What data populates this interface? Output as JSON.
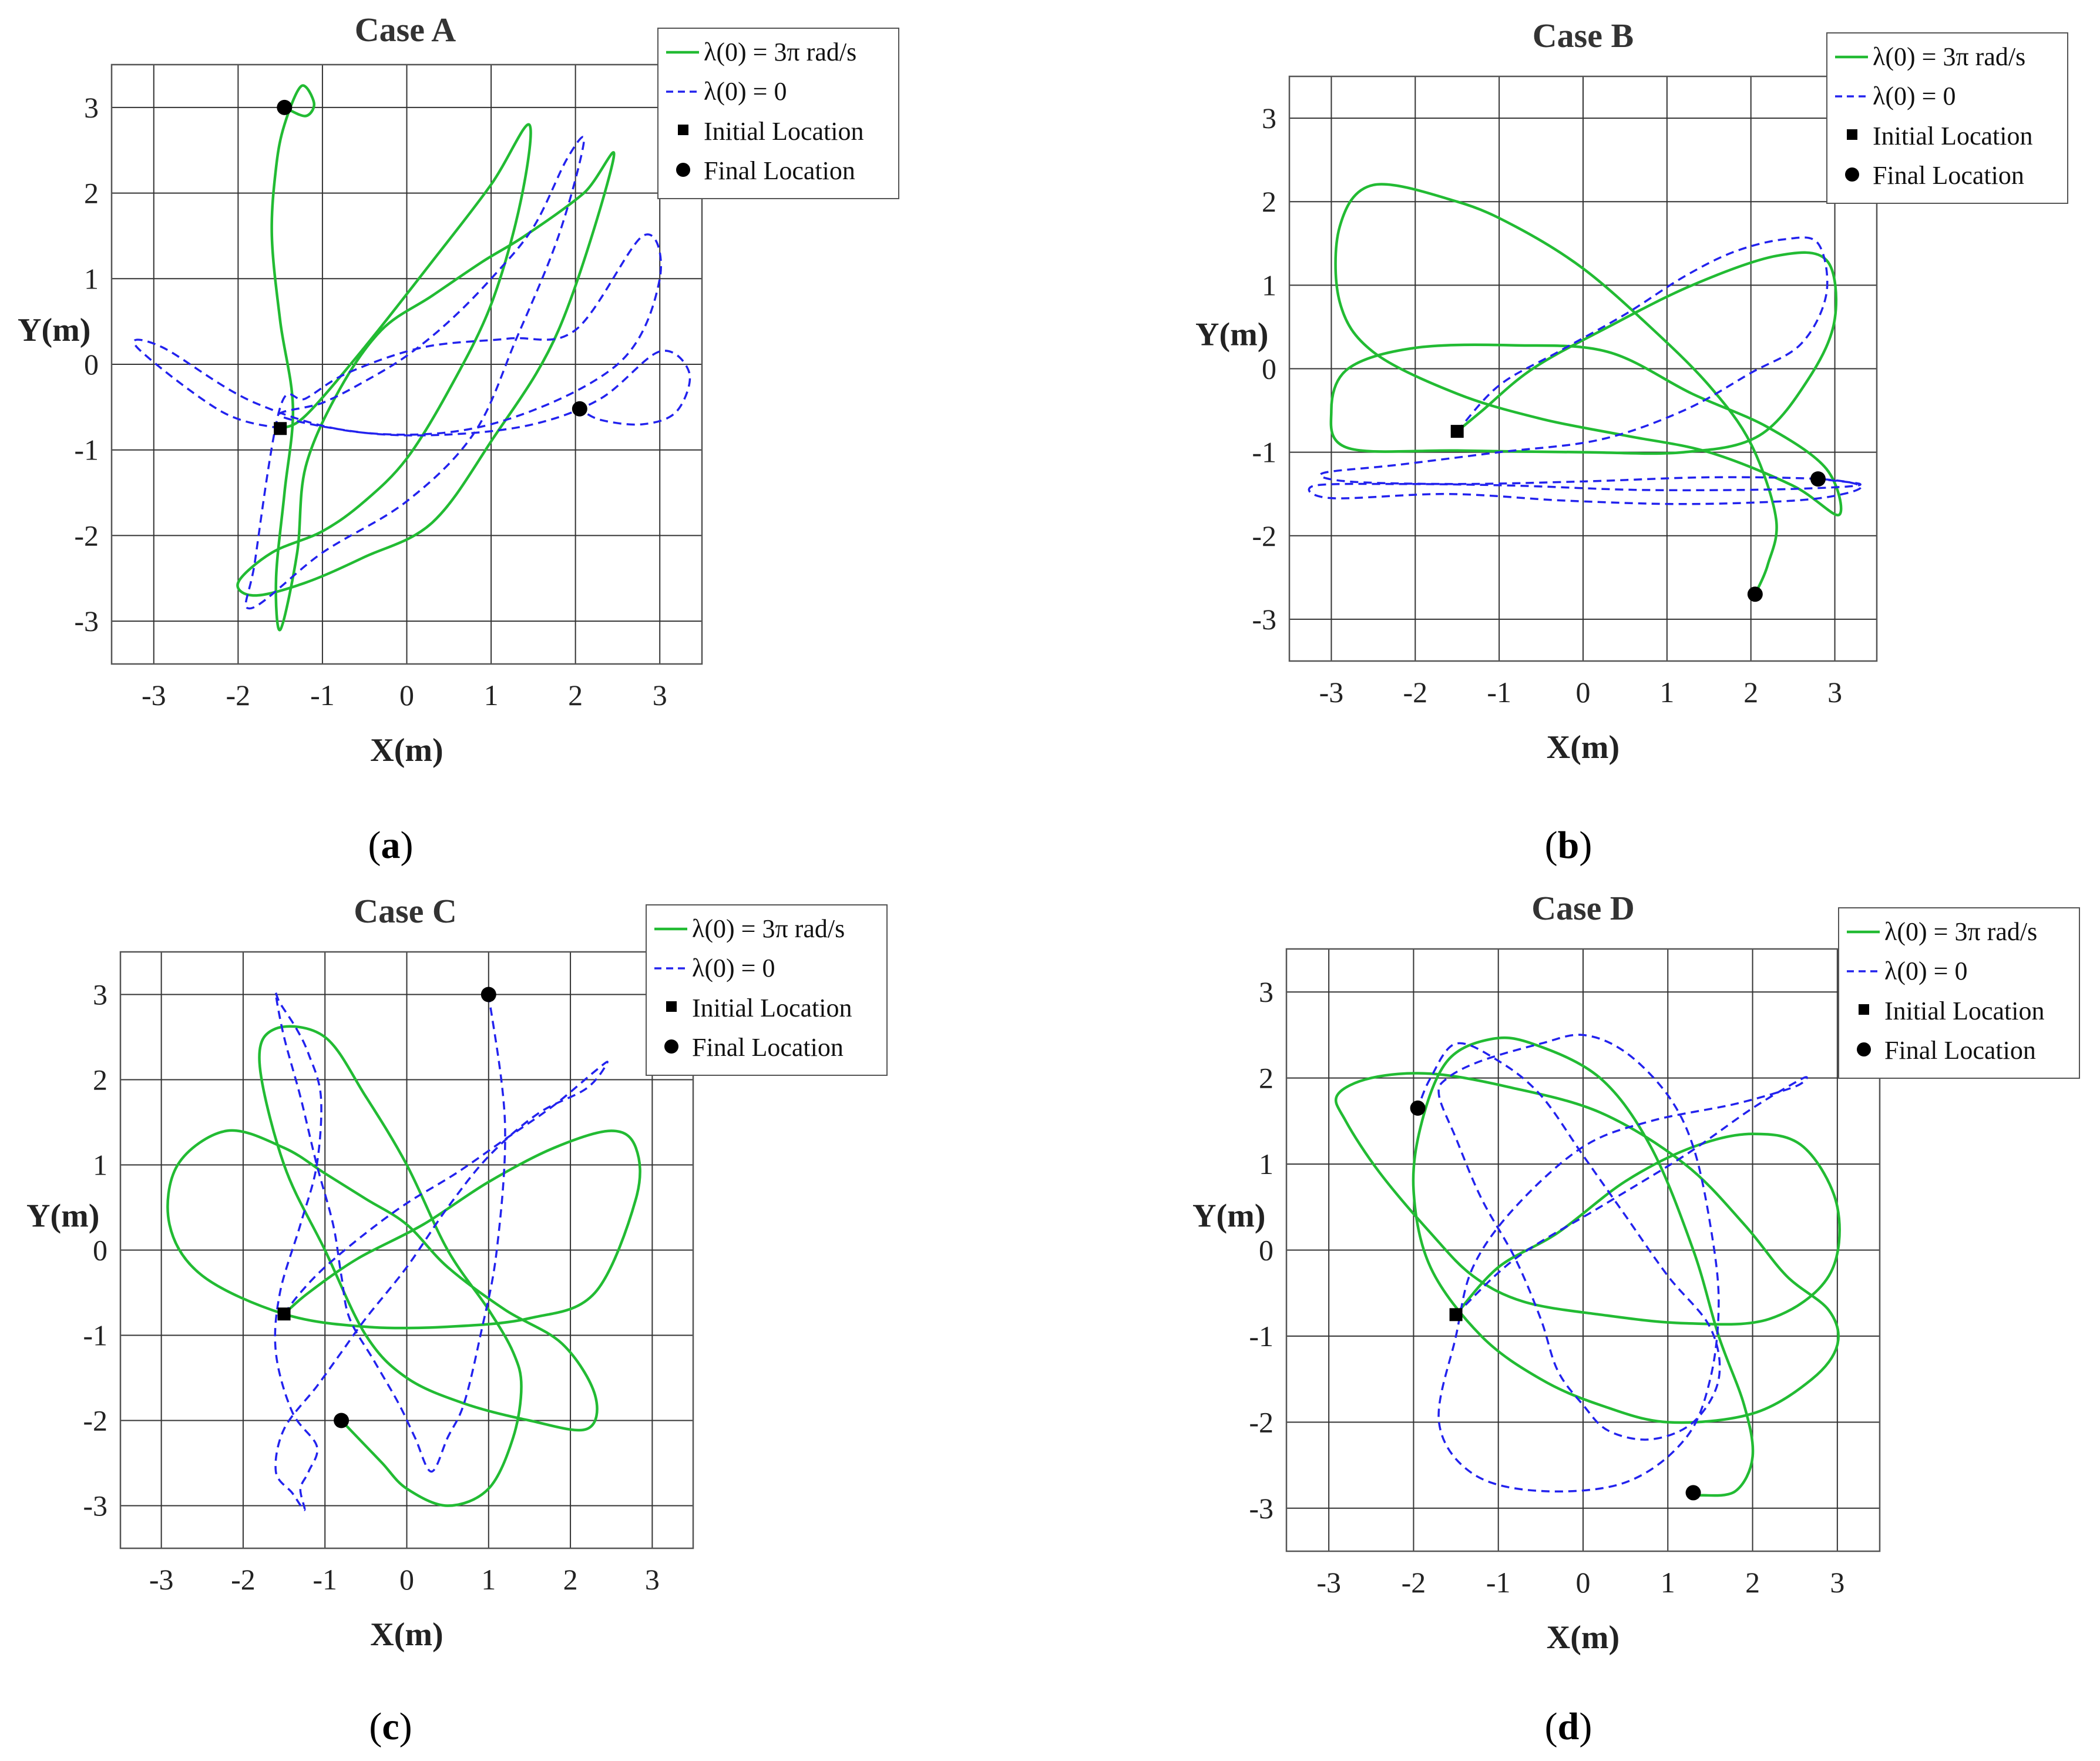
{
  "figure": {
    "legend": {
      "green": "λ(0) = 3π rad/s",
      "blue": "λ(0) = 0",
      "initial": "Initial Location",
      "final": "Final Location"
    },
    "colors": {
      "green": "#22bb33",
      "blue": "#2222ee",
      "marker": "#000000"
    }
  },
  "chart_data": [
    {
      "type": "line",
      "title": "Case A",
      "xlabel": "X(m)",
      "ylabel": "Y(m)",
      "xlim": [
        -3.5,
        3.5
      ],
      "ylim": [
        -3.5,
        3.5
      ],
      "xticks": [
        -3,
        -2,
        -1,
        0,
        1,
        2,
        3
      ],
      "yticks": [
        -3,
        -2,
        -1,
        0,
        1,
        2,
        3
      ],
      "grid": true,
      "caption": "a",
      "legend_position": "top-right",
      "initial": [
        -1.5,
        -0.75
      ],
      "series": [
        {
          "name": "λ(0) = 3π rad/s",
          "style": "solid",
          "final": [
            -1.45,
            3.0
          ],
          "x": [
            -1.5,
            -1.2,
            -0.5,
            0.3,
            1.0,
            1.45,
            1.35,
            1.0,
            0.5,
            0.0,
            -0.5,
            -1.0,
            -1.6,
            -2.0,
            -1.8,
            -1.2,
            -0.5,
            0.3,
            1.0,
            1.8,
            2.45,
            2.1,
            1.4,
            0.9,
            0.3,
            -0.3,
            -0.8,
            -1.2,
            -1.3,
            -1.5,
            -1.55,
            -1.45,
            -1.35,
            -1.5,
            -1.6,
            -1.55,
            -1.45,
            -1.25,
            -1.1,
            -1.2,
            -1.45
          ],
          "y": [
            -0.75,
            -0.6,
            0.2,
            1.2,
            2.1,
            2.8,
            1.9,
            0.7,
            -0.3,
            -1.1,
            -1.6,
            -1.95,
            -2.2,
            -2.55,
            -2.7,
            -2.55,
            -2.25,
            -1.85,
            -0.9,
            0.4,
            2.4,
            2.0,
            1.5,
            1.2,
            0.8,
            0.4,
            -0.3,
            -1.2,
            -2.2,
            -3.1,
            -2.5,
            -1.5,
            -0.5,
            0.5,
            1.5,
            2.3,
            2.8,
            3.25,
            3.05,
            2.9,
            3.0
          ]
        },
        {
          "name": "λ(0) = 0",
          "style": "dashed",
          "final": [
            2.05,
            -0.52
          ],
          "x": [
            -1.5,
            -2.2,
            -3.2,
            -2.9,
            -1.8,
            -0.5,
            1.0,
            2.5,
            3.0,
            2.8,
            2.0,
            1.2,
            0.2,
            -0.7,
            -1.2,
            -1.5,
            -1.8,
            -1.85,
            -1.0,
            0.0,
            0.8,
            1.3,
            1.8,
            2.1,
            1.9,
            1.5,
            1.0,
            0.5,
            0.0,
            -0.5,
            -1.0,
            -1.5,
            -0.5,
            0.5,
            1.5,
            2.3,
            3.0,
            3.35,
            3.2,
            2.8,
            2.3,
            2.05
          ],
          "y": [
            -0.75,
            -0.55,
            0.2,
            0.2,
            -0.45,
            -0.8,
            -0.7,
            0.0,
            1.0,
            1.5,
            0.4,
            0.3,
            0.2,
            -0.1,
            -0.4,
            -0.5,
            -2.3,
            -2.85,
            -2.2,
            -1.6,
            -0.8,
            0.3,
            1.5,
            2.6,
            2.4,
            1.6,
            1.0,
            0.5,
            0.1,
            -0.2,
            -0.45,
            -0.6,
            -0.8,
            -0.82,
            -0.7,
            -0.4,
            0.15,
            -0.1,
            -0.55,
            -0.7,
            -0.65,
            -0.52
          ]
        }
      ]
    },
    {
      "type": "line",
      "title": "Case B",
      "xlabel": "X(m)",
      "ylabel": "Y(m)",
      "xlim": [
        -3.5,
        3.5
      ],
      "ylim": [
        -3.5,
        3.5
      ],
      "xticks": [
        -3,
        -2,
        -1,
        0,
        1,
        2,
        3
      ],
      "yticks": [
        -3,
        -2,
        -1,
        0,
        1,
        2,
        3
      ],
      "grid": true,
      "caption": "b",
      "legend_position": "top-right",
      "initial": [
        -1.5,
        -0.75
      ],
      "series": [
        {
          "name": "λ(0) = 3π rad/s",
          "style": "solid",
          "final": [
            2.05,
            -2.7
          ],
          "x": [
            -1.5,
            -1.2,
            -0.6,
            0.3,
            1.3,
            2.3,
            2.9,
            3.0,
            2.7,
            2.1,
            1.2,
            0.0,
            -1.5,
            -2.8,
            -3.0,
            -2.8,
            -2.0,
            -0.8,
            0.3,
            1.3,
            2.2,
            2.9,
            3.05,
            2.5,
            1.5,
            0.5,
            -0.5,
            -1.5,
            -2.5,
            -2.9,
            -2.9,
            -2.5,
            -1.5,
            -0.8,
            0.0,
            0.8,
            1.5,
            2.0,
            2.3,
            2.2,
            2.05
          ],
          "y": [
            -0.75,
            -0.5,
            0.0,
            0.5,
            1.0,
            1.35,
            1.3,
            0.6,
            -0.1,
            -0.8,
            -1.0,
            -1.0,
            -0.98,
            -0.95,
            -0.5,
            0.0,
            0.25,
            0.28,
            0.2,
            -0.3,
            -0.7,
            -1.2,
            -1.75,
            -1.4,
            -1.0,
            -0.8,
            -0.6,
            -0.3,
            0.2,
            0.8,
            1.7,
            2.2,
            2.0,
            1.7,
            1.2,
            0.5,
            -0.2,
            -0.9,
            -1.8,
            -2.35,
            -2.7
          ]
        },
        {
          "name": "λ(0) = 0",
          "style": "dashed",
          "final": [
            2.8,
            -1.32
          ],
          "x": [
            -1.5,
            -1.0,
            -0.3,
            0.5,
            1.2,
            1.8,
            2.4,
            2.8,
            2.9,
            2.6,
            2.0,
            1.2,
            0.2,
            -1.0,
            -2.2,
            -3.1,
            -2.8,
            -1.5,
            0.0,
            1.5,
            2.8,
            3.3,
            3.1,
            2.5,
            1.2,
            -0.2,
            -1.6,
            -3.0,
            -3.2,
            -2.2,
            -0.8,
            0.6,
            2.0,
            3.0,
            3.3,
            2.8
          ],
          "y": [
            -0.75,
            -0.2,
            0.2,
            0.65,
            1.1,
            1.4,
            1.55,
            1.5,
            0.9,
            0.3,
            -0.05,
            -0.5,
            -0.85,
            -1.0,
            -1.15,
            -1.25,
            -1.35,
            -1.38,
            -1.35,
            -1.3,
            -1.32,
            -1.4,
            -1.5,
            -1.58,
            -1.62,
            -1.58,
            -1.5,
            -1.55,
            -1.4,
            -1.38,
            -1.4,
            -1.45,
            -1.45,
            -1.42,
            -1.38,
            -1.32
          ]
        }
      ]
    },
    {
      "type": "line",
      "title": "Case C",
      "xlabel": "X(m)",
      "ylabel": "Y(m)",
      "xlim": [
        -3.5,
        3.5
      ],
      "ylim": [
        -3.5,
        3.5
      ],
      "xticks": [
        -3,
        -2,
        -1,
        0,
        1,
        2,
        3
      ],
      "yticks": [
        -3,
        -2,
        -1,
        0,
        1,
        2,
        3
      ],
      "grid": true,
      "caption": "c",
      "legend_position": "top-right",
      "initial": [
        -1.5,
        -0.75
      ],
      "series": [
        {
          "name": "λ(0) = 3π rad/s",
          "style": "solid",
          "final": [
            -0.8,
            -2.0
          ],
          "x": [
            -1.5,
            -1.2,
            -0.6,
            0.2,
            1.0,
            1.8,
            2.5,
            2.8,
            2.8,
            2.3,
            1.5,
            0.5,
            -0.5,
            -1.5,
            -2.5,
            -2.9,
            -2.8,
            -2.2,
            -1.5,
            -1.0,
            -0.5,
            0.0,
            0.5,
            1.2,
            1.9,
            2.3,
            2.2,
            1.5,
            0.7,
            0.0,
            -0.5,
            -1.0,
            -1.5,
            -1.8,
            -1.6,
            -1.0,
            -0.5,
            0.0,
            0.5,
            1.0,
            1.3,
            1.4,
            1.3,
            1.0,
            0.5,
            0.0,
            -0.3,
            -0.6,
            -0.8
          ],
          "y": [
            -0.75,
            -0.5,
            -0.1,
            0.3,
            0.8,
            1.2,
            1.4,
            1.2,
            0.6,
            -0.5,
            -0.8,
            -0.9,
            -0.9,
            -0.75,
            -0.3,
            0.3,
            1.0,
            1.4,
            1.2,
            0.9,
            0.6,
            0.3,
            -0.2,
            -0.7,
            -1.1,
            -1.7,
            -2.1,
            -2.0,
            -1.8,
            -1.5,
            -1.0,
            0.0,
            1.0,
            2.2,
            2.6,
            2.5,
            1.8,
            1.0,
            0.0,
            -0.7,
            -1.2,
            -1.6,
            -2.2,
            -2.8,
            -3.0,
            -2.8,
            -2.5,
            -2.2,
            -2.0
          ]
        },
        {
          "name": "λ(0) = 0",
          "style": "dashed",
          "final": [
            1.0,
            3.0
          ],
          "x": [
            -1.5,
            -1.3,
            -1.0,
            -0.5,
            0.0,
            0.6,
            1.2,
            1.8,
            2.3,
            2.45,
            2.2,
            1.6,
            1.0,
            0.5,
            0.0,
            -0.5,
            -0.8,
            -1.1,
            -1.5,
            -1.6,
            -1.4,
            -1.25,
            -1.3,
            -1.2,
            -1.1,
            -1.4,
            -1.6,
            -1.55,
            -1.3,
            -1.1,
            -1.05,
            -1.2,
            -1.35,
            -1.55,
            -1.6,
            -1.5,
            -1.3,
            -1.1,
            -0.9,
            -0.8,
            -0.7,
            -0.4,
            -0.1,
            0.1,
            0.3,
            0.5,
            0.7,
            0.9,
            1.1,
            1.2,
            1.0
          ],
          "y": [
            -0.75,
            -0.5,
            -0.2,
            0.2,
            0.55,
            0.9,
            1.3,
            1.7,
            2.1,
            2.2,
            1.9,
            1.6,
            1.1,
            0.5,
            -0.2,
            -0.8,
            -1.2,
            -1.6,
            -2.1,
            -2.6,
            -2.85,
            -3.05,
            -2.8,
            -2.6,
            -2.3,
            -1.9,
            -1.2,
            -0.5,
            0.3,
            1.0,
            1.8,
            2.3,
            2.6,
            2.9,
            3.0,
            2.5,
            1.8,
            1.0,
            0.3,
            -0.3,
            -0.8,
            -1.3,
            -1.8,
            -2.2,
            -2.6,
            -2.2,
            -1.8,
            -1.0,
            0.0,
            1.5,
            3.0
          ]
        }
      ]
    },
    {
      "type": "line",
      "title": "Case D",
      "xlabel": "X(m)",
      "ylabel": "Y(m)",
      "xlim": [
        -3.5,
        3.5
      ],
      "ylim": [
        -3.5,
        3.5
      ],
      "xticks": [
        -3,
        -2,
        -1,
        0,
        1,
        2,
        3
      ],
      "yticks": [
        -3,
        -2,
        -1,
        0,
        1,
        2,
        3
      ],
      "grid": true,
      "caption": "d",
      "legend_position": "top-right",
      "initial": [
        -1.5,
        -0.75
      ],
      "series": [
        {
          "name": "λ(0) = 3π rad/s",
          "style": "solid",
          "final": [
            1.3,
            -2.82
          ],
          "x": [
            -1.5,
            -1.0,
            -0.3,
            0.5,
            1.3,
            2.0,
            2.6,
            3.0,
            2.9,
            2.2,
            1.2,
            0.2,
            -0.7,
            -1.3,
            -1.8,
            -2.4,
            -2.8,
            -2.9,
            -2.5,
            -1.8,
            -0.9,
            0.2,
            1.2,
            1.9,
            2.4,
            2.9,
            3.0,
            2.7,
            2.0,
            1.0,
            0.2,
            -0.5,
            -1.2,
            -1.8,
            -2.0,
            -1.9,
            -1.6,
            -1.1,
            -0.6,
            0.2,
            0.8,
            1.3,
            1.6,
            1.9,
            2.0,
            1.8,
            1.4,
            1.3
          ],
          "y": [
            -0.75,
            -0.2,
            0.2,
            0.8,
            1.2,
            1.35,
            1.2,
            0.5,
            -0.3,
            -0.8,
            -0.85,
            -0.75,
            -0.6,
            -0.3,
            0.2,
            0.9,
            1.5,
            1.8,
            2.0,
            2.05,
            1.9,
            1.6,
            1.0,
            0.3,
            -0.3,
            -0.7,
            -1.1,
            -1.5,
            -1.9,
            -2.0,
            -1.8,
            -1.5,
            -1.0,
            -0.2,
            0.7,
            1.5,
            2.2,
            2.45,
            2.4,
            2.0,
            1.2,
            0.0,
            -1.0,
            -1.8,
            -2.4,
            -2.8,
            -2.85,
            -2.82
          ]
        },
        {
          "name": "λ(0) = 0",
          "style": "dashed",
          "final": [
            -1.95,
            1.65
          ],
          "x": [
            -1.5,
            -0.8,
            0.2,
            1.2,
            2.0,
            2.6,
            2.5,
            1.8,
            0.8,
            0.0,
            -0.8,
            -1.3,
            -1.5,
            -1.7,
            -1.3,
            -0.5,
            0.5,
            1.2,
            1.5,
            1.6,
            1.5,
            1.3,
            1.0,
            0.5,
            0.0,
            -0.5,
            -1.2,
            -1.6,
            -1.7,
            -1.5,
            -1.2,
            -0.8,
            -0.5,
            -0.3,
            0.0,
            0.3,
            0.8,
            1.3,
            1.6,
            1.5,
            1.0,
            0.5,
            0.0,
            -0.5,
            -1.0,
            -1.5,
            -1.8,
            -1.95
          ],
          "y": [
            -0.75,
            -0.1,
            0.5,
            1.1,
            1.65,
            2.0,
            1.9,
            1.7,
            1.5,
            1.2,
            0.5,
            -0.2,
            -1.0,
            -2.0,
            -2.6,
            -2.8,
            -2.7,
            -2.2,
            -1.5,
            -0.6,
            0.3,
            1.2,
            1.8,
            2.3,
            2.5,
            2.4,
            2.2,
            2.0,
            1.8,
            1.3,
            0.6,
            -0.1,
            -0.8,
            -1.4,
            -1.8,
            -2.1,
            -2.2,
            -2.0,
            -1.5,
            -0.9,
            -0.3,
            0.4,
            1.1,
            1.8,
            2.2,
            2.4,
            2.0,
            1.65
          ]
        }
      ]
    }
  ]
}
